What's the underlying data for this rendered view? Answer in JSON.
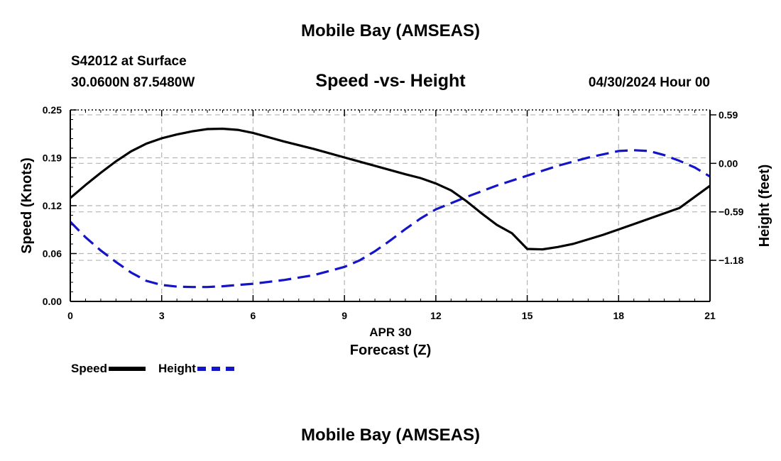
{
  "header": {
    "title": "Mobile Bay (AMSEAS)",
    "station": "S42012 at Surface",
    "coords": "30.0600N  87.5480W",
    "chart_title": "Speed -vs- Height",
    "date": "04/30/2024 Hour 00"
  },
  "footer": {
    "title": "Mobile Bay (AMSEAS)"
  },
  "legend": {
    "speed": "Speed",
    "height": "Height"
  },
  "colors": {
    "speed": "#000000",
    "height": "#1414c8"
  },
  "chart_data": {
    "type": "line",
    "title": "Speed -vs- Height",
    "xlabel": "Forecast (Z)",
    "xlabel_date": "APR 30",
    "ylabel": "Speed (Knots)",
    "y2label": "Height (feet)",
    "xlim": [
      0,
      21
    ],
    "ylim": [
      0,
      0.25
    ],
    "y2lim": [
      -1.68,
      0.65
    ],
    "x_ticks": [
      0,
      3,
      6,
      9,
      12,
      15,
      18,
      21
    ],
    "x_tick_labels": [
      "0",
      "3",
      "6",
      "9",
      "12",
      "15",
      "18",
      "21"
    ],
    "y_ticks": [
      0.0,
      0.0625,
      0.125,
      0.1875,
      0.25
    ],
    "y_tick_labels": [
      "0.00",
      "0.06",
      "0.12",
      "0.19",
      "0.25"
    ],
    "y2_ticks": [
      -1.18,
      -0.59,
      0.0,
      0.59
    ],
    "y2_tick_labels": [
      "−1.18",
      "−0.59",
      "0.00",
      "0.59"
    ],
    "grid": true,
    "legend_position": "bottom-left",
    "series": [
      {
        "name": "Speed",
        "axis": "left",
        "style": "solid",
        "x": [
          0,
          0.5,
          1,
          1.5,
          2,
          2.5,
          3,
          3.5,
          4,
          4.5,
          5,
          5.5,
          6,
          7,
          8,
          9,
          10,
          11,
          11.5,
          12,
          12.5,
          13,
          13.5,
          14,
          14.5,
          15,
          15.5,
          16,
          16.5,
          17,
          17.5,
          18,
          19,
          20,
          21
        ],
        "values": [
          0.135,
          0.152,
          0.168,
          0.183,
          0.196,
          0.206,
          0.213,
          0.218,
          0.222,
          0.225,
          0.2255,
          0.224,
          0.22,
          0.209,
          0.199,
          0.188,
          0.177,
          0.166,
          0.161,
          0.154,
          0.145,
          0.131,
          0.115,
          0.1,
          0.089,
          0.0685,
          0.068,
          0.071,
          0.075,
          0.081,
          0.087,
          0.094,
          0.108,
          0.122,
          0.151
        ]
      },
      {
        "name": "Height",
        "axis": "right",
        "style": "dashed",
        "x": [
          0,
          0.5,
          1,
          1.5,
          2,
          2.5,
          3,
          3.5,
          4,
          4.5,
          5,
          5.5,
          6,
          7,
          8,
          9,
          9.5,
          10,
          10.5,
          11,
          11.5,
          12,
          13,
          14,
          15,
          16,
          17,
          18,
          18.5,
          19,
          19.5,
          20,
          20.5,
          21
        ],
        "values": [
          -0.71,
          -0.9,
          -1.06,
          -1.2,
          -1.33,
          -1.43,
          -1.48,
          -1.5,
          -1.505,
          -1.505,
          -1.495,
          -1.48,
          -1.465,
          -1.42,
          -1.36,
          -1.26,
          -1.18,
          -1.07,
          -0.94,
          -0.8,
          -0.67,
          -0.56,
          -0.41,
          -0.27,
          -0.15,
          -0.03,
          0.07,
          0.15,
          0.16,
          0.15,
          0.1,
          0.03,
          -0.05,
          -0.16
        ]
      }
    ]
  }
}
